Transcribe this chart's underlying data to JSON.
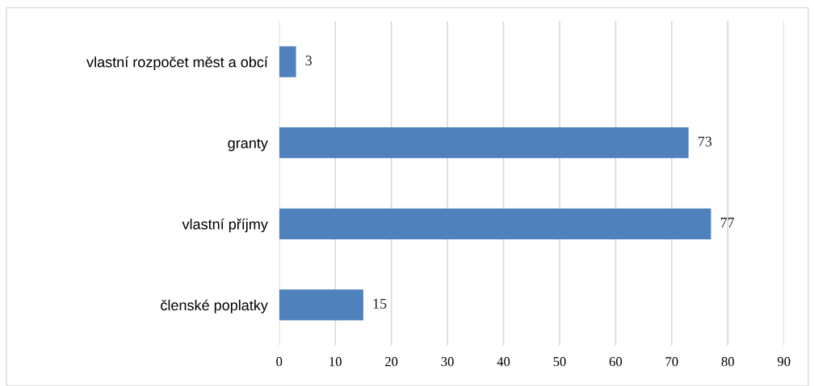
{
  "chart_data": {
    "type": "bar",
    "orientation": "horizontal",
    "categories": [
      "vlastní rozpočet měst a obcí",
      "granty",
      "vlastní příjmy",
      "členské poplatky"
    ],
    "values": [
      3,
      73,
      77,
      15
    ],
    "color": "#4f81bd",
    "data_labels": true,
    "xlim": [
      0,
      90
    ],
    "xticks": [
      0,
      10,
      20,
      30,
      40,
      50,
      60,
      70,
      80,
      90
    ],
    "grid": "x",
    "legend": false
  }
}
